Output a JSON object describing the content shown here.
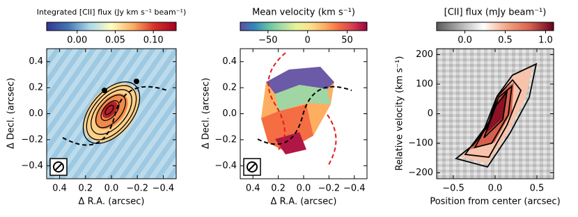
{
  "chart_data": [
    {
      "type": "map",
      "colorbar_label": "Integrated [CII] flux (Jy km s⁻¹ beam⁻¹)",
      "clim": [
        -0.04,
        0.13
      ],
      "cticks": [
        {
          "value": 0,
          "label": "0.00"
        },
        {
          "value": 0.05,
          "label": "0.05"
        },
        {
          "value": 0.1,
          "label": "0.10"
        }
      ],
      "colors": [
        "#313695",
        "#4575b4",
        "#abd9e9",
        "#ffffbf",
        "#fdae61",
        "#d73027",
        "#a50026"
      ],
      "xlabel": "Δ R.A. (arcsec)",
      "ylabel": "Δ Decl. (arcsec)",
      "xlim": [
        0.5,
        -0.5
      ],
      "xticks": [
        0.4,
        0.2,
        {
          "value": 0,
          "label": "0.0"
        },
        {
          "value": -0.2,
          "label": "−0.2"
        },
        {
          "value": -0.4,
          "label": "−0.4"
        }
      ],
      "ylim": [
        -0.5,
        0.5
      ],
      "yticks": [
        {
          "value": -0.4,
          "label": "−0.4"
        },
        {
          "value": -0.2,
          "label": "−0.2"
        },
        {
          "value": 0,
          "label": "0.0"
        },
        0.2,
        0.4
      ]
    },
    {
      "type": "map",
      "colorbar_label": "Mean velocity (km s⁻¹)",
      "clim": [
        -85,
        75
      ],
      "cticks": [
        {
          "value": -50,
          "label": "−50"
        },
        0,
        50
      ],
      "colors": [
        "#5e4fa2",
        "#3288bd",
        "#66c2a5",
        "#abdda4",
        "#e6f598",
        "#fee08b",
        "#fdae61",
        "#f46d43",
        "#d53e4f",
        "#9e0142"
      ],
      "xlabel": "Δ R.A. (arcsec)",
      "ylabel": "Δ Decl. (arcsec)",
      "xlim": [
        0.5,
        -0.5
      ],
      "xticks": [
        0.4,
        0.2,
        {
          "value": 0,
          "label": "0.0"
        },
        {
          "value": -0.2,
          "label": "−0.2"
        },
        {
          "value": -0.4,
          "label": "−0.4"
        }
      ],
      "ylim": [
        -0.5,
        0.5
      ],
      "yticks": [
        {
          "value": -0.4,
          "label": "−0.4"
        },
        {
          "value": -0.2,
          "label": "−0.2"
        },
        {
          "value": 0,
          "label": "0.0"
        },
        0.2,
        0.4
      ]
    },
    {
      "type": "pv",
      "colorbar_label": "[CII] flux (mJy beam⁻¹)",
      "clim": [
        -0.35,
        1.1
      ],
      "cticks": [
        {
          "value": 0,
          "label": "0.0"
        },
        0.5,
        {
          "value": 1,
          "label": "1.0"
        }
      ],
      "colors": [
        "#5a5a5a",
        "#b0b0b0",
        "#ffffff",
        "#f4a582",
        "#d6604d",
        "#67001f"
      ],
      "xlabel": "Position from center (arcsec)",
      "ylabel": "Relative velocity (km s⁻¹)",
      "xlim": [
        -0.7,
        0.7
      ],
      "xticks": [
        {
          "value": -0.5,
          "label": "−0.5"
        },
        {
          "value": 0,
          "label": "0.0"
        },
        0.5
      ],
      "ylim": [
        -220,
        220
      ],
      "yticks": [
        {
          "value": -200,
          "label": "−200"
        },
        {
          "value": -100,
          "label": "−100"
        },
        0,
        100,
        200
      ]
    }
  ]
}
